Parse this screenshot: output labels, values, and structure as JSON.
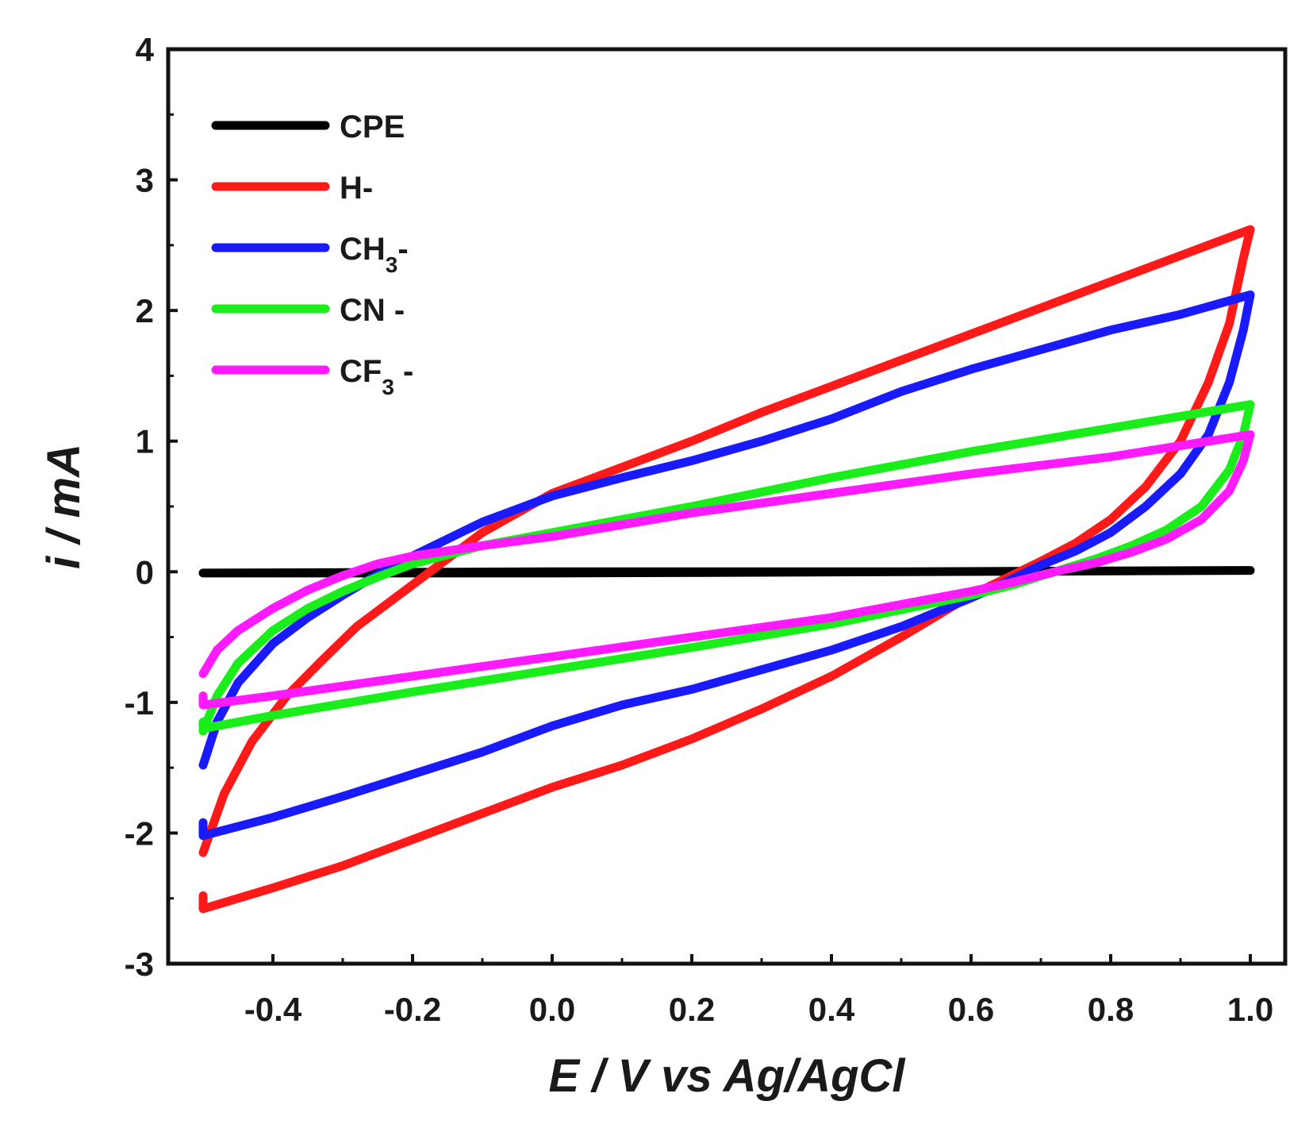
{
  "chart_data": {
    "type": "line",
    "xlabel": "E / V vs Ag/AgCl",
    "ylabel": "i / mA",
    "xlim": [
      -0.55,
      1.05
    ],
    "ylim": [
      -3,
      4
    ],
    "xticks": [
      -0.4,
      -0.2,
      0.0,
      0.2,
      0.4,
      0.6,
      0.8,
      1.0
    ],
    "xtick_labels": [
      "-0.4",
      "-0.2",
      "0.0",
      "0.2",
      "0.4",
      "0.6",
      "0.8",
      "1.0"
    ],
    "yticks": [
      -3,
      -2,
      -1,
      0,
      1,
      2,
      3,
      4
    ],
    "ytick_labels": [
      "-3",
      "-2",
      "-1",
      "0",
      "1",
      "2",
      "3",
      "4"
    ],
    "legend_position": "top-left",
    "series": [
      {
        "name": "CPE",
        "label": "CPE",
        "color": "#000000",
        "x": [
          -0.5,
          0.0,
          0.5,
          1.0,
          0.5,
          0.0,
          -0.5
        ],
        "y": [
          -0.01,
          0.0,
          0.0,
          0.01,
          0.0,
          -0.01,
          -0.01
        ]
      },
      {
        "name": "H-",
        "label": "H-",
        "color": "#ff1a1a",
        "x": [
          -0.5,
          -0.47,
          -0.43,
          -0.38,
          -0.33,
          -0.28,
          -0.22,
          -0.15,
          -0.1,
          0.0,
          0.1,
          0.2,
          0.3,
          0.4,
          0.5,
          0.6,
          0.7,
          0.8,
          0.9,
          1.0,
          0.99,
          0.97,
          0.94,
          0.9,
          0.85,
          0.8,
          0.75,
          0.7,
          0.65,
          0.6,
          0.5,
          0.4,
          0.3,
          0.2,
          0.1,
          0.0,
          -0.1,
          -0.2,
          -0.3,
          -0.4,
          -0.5,
          -0.5
        ],
        "y": [
          -2.15,
          -1.7,
          -1.3,
          -0.95,
          -0.68,
          -0.42,
          -0.18,
          0.1,
          0.3,
          0.6,
          0.8,
          1.0,
          1.22,
          1.42,
          1.62,
          1.82,
          2.02,
          2.22,
          2.42,
          2.62,
          2.4,
          1.9,
          1.45,
          1.0,
          0.65,
          0.4,
          0.22,
          0.08,
          -0.05,
          -0.18,
          -0.5,
          -0.8,
          -1.05,
          -1.28,
          -1.48,
          -1.65,
          -1.85,
          -2.05,
          -2.25,
          -2.42,
          -2.58,
          -2.48
        ]
      },
      {
        "name": "CH3-",
        "label": "CH",
        "label_sub": "3",
        "label_suffix": "-",
        "color": "#1a1aff",
        "x": [
          -0.5,
          -0.48,
          -0.45,
          -0.4,
          -0.35,
          -0.3,
          -0.25,
          -0.2,
          -0.1,
          0.0,
          0.1,
          0.2,
          0.3,
          0.4,
          0.5,
          0.6,
          0.7,
          0.8,
          0.9,
          1.0,
          0.99,
          0.97,
          0.94,
          0.9,
          0.85,
          0.8,
          0.75,
          0.7,
          0.65,
          0.6,
          0.5,
          0.4,
          0.3,
          0.2,
          0.1,
          0.0,
          -0.1,
          -0.2,
          -0.3,
          -0.4,
          -0.5,
          -0.5
        ],
        "y": [
          -1.48,
          -1.15,
          -0.85,
          -0.55,
          -0.35,
          -0.18,
          -0.02,
          0.12,
          0.38,
          0.58,
          0.72,
          0.85,
          1.0,
          1.17,
          1.38,
          1.55,
          1.7,
          1.85,
          1.97,
          2.12,
          1.85,
          1.45,
          1.05,
          0.75,
          0.5,
          0.3,
          0.16,
          0.05,
          -0.08,
          -0.2,
          -0.42,
          -0.6,
          -0.75,
          -0.9,
          -1.02,
          -1.18,
          -1.38,
          -1.55,
          -1.72,
          -1.88,
          -2.02,
          -1.92
        ]
      },
      {
        "name": "CN -",
        "label": "CN -",
        "color": "#1aee1a",
        "x": [
          -0.5,
          -0.48,
          -0.45,
          -0.4,
          -0.35,
          -0.3,
          -0.25,
          -0.2,
          -0.1,
          0.0,
          0.2,
          0.4,
          0.6,
          0.8,
          1.0,
          0.99,
          0.97,
          0.93,
          0.88,
          0.83,
          0.78,
          0.72,
          0.66,
          0.6,
          0.4,
          0.2,
          0.0,
          -0.2,
          -0.4,
          -0.5,
          -0.5
        ],
        "y": [
          -1.22,
          -0.95,
          -0.7,
          -0.45,
          -0.28,
          -0.15,
          -0.04,
          0.06,
          0.2,
          0.3,
          0.5,
          0.72,
          0.92,
          1.1,
          1.28,
          1.05,
          0.78,
          0.5,
          0.32,
          0.2,
          0.1,
          0.0,
          -0.1,
          -0.18,
          -0.4,
          -0.58,
          -0.75,
          -0.92,
          -1.1,
          -1.2,
          -1.15
        ]
      },
      {
        "name": "CF3 -",
        "label": "CF",
        "label_sub": "3",
        "label_suffix": " -",
        "color": "#ff1aff",
        "x": [
          -0.5,
          -0.48,
          -0.45,
          -0.4,
          -0.35,
          -0.3,
          -0.25,
          -0.2,
          -0.1,
          0.0,
          0.2,
          0.4,
          0.6,
          0.8,
          1.0,
          0.99,
          0.97,
          0.93,
          0.88,
          0.83,
          0.78,
          0.72,
          0.66,
          0.6,
          0.4,
          0.2,
          0.0,
          -0.2,
          -0.4,
          -0.5,
          -0.5
        ],
        "y": [
          -0.78,
          -0.6,
          -0.45,
          -0.28,
          -0.14,
          -0.03,
          0.06,
          0.12,
          0.2,
          0.27,
          0.45,
          0.6,
          0.75,
          0.88,
          1.05,
          0.85,
          0.62,
          0.4,
          0.25,
          0.15,
          0.07,
          0.0,
          -0.08,
          -0.15,
          -0.35,
          -0.5,
          -0.65,
          -0.8,
          -0.95,
          -1.02,
          -0.95
        ]
      }
    ]
  }
}
